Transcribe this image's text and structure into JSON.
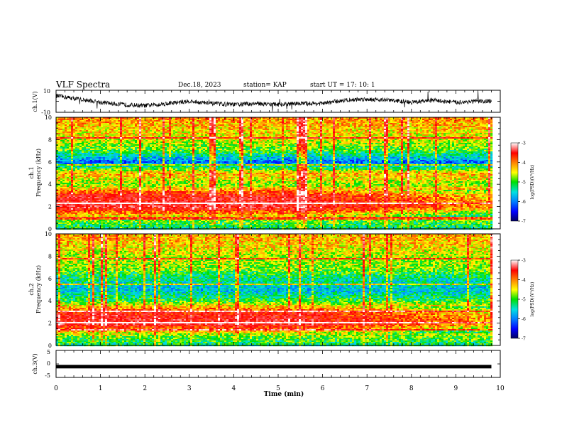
{
  "header": {
    "title": "VLF Spectra",
    "date": "Dec.18, 2023",
    "station": "station= KAP",
    "start": "start  UT =   17: 10: 1"
  },
  "colors": {
    "spectrogram_scale": [
      "#000060",
      "#0000ff",
      "#0080ff",
      "#00e0e0",
      "#00e000",
      "#ffff00",
      "#ff8000",
      "#ff0000",
      "#ff5050",
      "#ffffff"
    ],
    "trace": "#000000"
  },
  "chart_data": [
    {
      "type": "line",
      "ylabel": "ch.1(V)",
      "ylim": [
        -10,
        10
      ],
      "y_ticks": [
        "10",
        "-10"
      ],
      "xlim": [
        0,
        10
      ],
      "series": [
        {
          "x": [
            0,
            0.5,
            1,
            1.5,
            2,
            2.5,
            3,
            3.5,
            4,
            4.5,
            5,
            5.5,
            6,
            6.5,
            7,
            7.5,
            8,
            8.5,
            9,
            9.5,
            9.8
          ],
          "values": [
            5,
            2,
            -1,
            -3,
            -4,
            -2,
            0,
            -2,
            -3,
            -2,
            -3,
            -2,
            -2,
            1,
            2,
            1,
            -1,
            1,
            -1,
            0,
            0
          ]
        }
      ]
    },
    {
      "type": "heatmap",
      "ylabel": "ch.1\nFrequency (kHz)",
      "ylabel_line1": "ch.1",
      "ylabel_line2": "Frequency (kHz)",
      "xlim": [
        0,
        10
      ],
      "ylim": [
        0,
        10
      ],
      "y_ticks": [
        "10",
        "8",
        "6",
        "4",
        "2",
        "0"
      ],
      "x_data_end": 9.8,
      "colorbar": {
        "label": "log(PSD)(V²/Hz)",
        "range": [
          -7,
          -3
        ],
        "ticks": [
          "-3",
          "-4",
          "-5",
          "-6",
          "-7"
        ]
      },
      "power_profile_khz": [
        {
          "f": 0,
          "v": -5.5
        },
        {
          "f": 1,
          "v": -5.0
        },
        {
          "f": 2,
          "v": -3.6
        },
        {
          "f": 3,
          "v": -3.8
        },
        {
          "f": 4,
          "v": -5.0
        },
        {
          "f": 5,
          "v": -4.5
        },
        {
          "f": 6,
          "v": -6.2
        },
        {
          "f": 7,
          "v": -5.2
        },
        {
          "f": 8,
          "v": -4.8
        },
        {
          "f": 9,
          "v": -4.6
        },
        {
          "f": 10,
          "v": -4.4
        }
      ]
    },
    {
      "type": "heatmap",
      "ylabel": "ch.2\nFrequency (kHz)",
      "ylabel_line1": "ch.2",
      "ylabel_line2": "Frequency (kHz)",
      "xlim": [
        0,
        10
      ],
      "ylim": [
        0,
        10
      ],
      "y_ticks": [
        "10",
        "8",
        "6",
        "4",
        "2",
        "0"
      ],
      "x_data_end": 9.8,
      "colorbar": {
        "label": "log(PSD)(V²/Hz)",
        "range": [
          -7,
          -3
        ],
        "ticks": [
          "-3",
          "-4",
          "-5",
          "-6",
          "-7"
        ]
      },
      "power_profile_khz": [
        {
          "f": 0,
          "v": -5.5
        },
        {
          "f": 1,
          "v": -5.0
        },
        {
          "f": 2,
          "v": -3.6
        },
        {
          "f": 3,
          "v": -3.9
        },
        {
          "f": 4,
          "v": -5.2
        },
        {
          "f": 5,
          "v": -5.8
        },
        {
          "f": 6,
          "v": -5.5
        },
        {
          "f": 7,
          "v": -5.0
        },
        {
          "f": 8,
          "v": -4.9
        },
        {
          "f": 9,
          "v": -4.6
        },
        {
          "f": 10,
          "v": -4.5
        }
      ]
    },
    {
      "type": "line",
      "ylabel": "ch.3(V)",
      "ylim": [
        -5,
        5
      ],
      "y_ticks": [
        "5",
        "0",
        "-5"
      ],
      "xlim": [
        0,
        10
      ],
      "series": [
        {
          "x": [
            0,
            9.8
          ],
          "values": [
            -1,
            -1
          ]
        }
      ]
    }
  ],
  "x_axis": {
    "label": "Time (min)",
    "ticks": [
      "0",
      "1",
      "2",
      "3",
      "4",
      "5",
      "6",
      "7",
      "8",
      "9",
      "10"
    ]
  }
}
